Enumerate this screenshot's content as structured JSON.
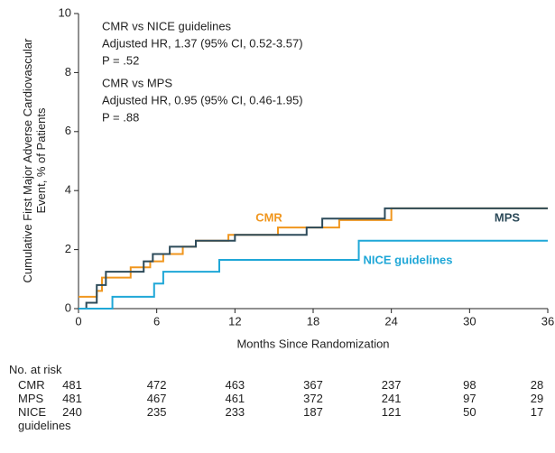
{
  "chart_data": {
    "type": "step",
    "y_label": "Cumulative First Major Adverse Cardiovascular Event, % of Patients",
    "x_label": "Months Since Randomization",
    "annotations": [
      "CMR vs NICE guidelines",
      "Adjusted HR, 1.37 (95% CI, 0.52-3.57)",
      "P = .52",
      "CMR vs MPS",
      "Adjusted HR, 0.95 (95% CI, 0.46-1.95)",
      "P = .88"
    ],
    "xlim": [
      0,
      36
    ],
    "xticks": [
      0,
      6,
      12,
      18,
      24,
      30,
      36
    ],
    "ylim": [
      0,
      10
    ],
    "yticks": [
      0,
      2,
      4,
      6,
      8,
      10
    ],
    "series": [
      {
        "name": "CMR",
        "color": "#f0961e",
        "x": [
          0,
          1.4,
          1.8,
          4.0,
          5.5,
          6.5,
          8.0,
          9.0,
          11.5,
          15.3,
          20.0,
          24.0,
          36
        ],
        "values": [
          0.4,
          0.6,
          1.05,
          1.4,
          1.6,
          1.85,
          2.1,
          2.3,
          2.5,
          2.75,
          3.0,
          3.4,
          3.4
        ]
      },
      {
        "name": "MPS",
        "color": "#2d4b5a",
        "x": [
          0,
          0.6,
          1.4,
          2.1,
          5.0,
          5.7,
          7.0,
          9.0,
          12.0,
          17.5,
          18.7,
          23.5,
          36
        ],
        "values": [
          0,
          0.2,
          0.8,
          1.25,
          1.6,
          1.85,
          2.1,
          2.3,
          2.5,
          2.75,
          3.05,
          3.4,
          3.4
        ]
      },
      {
        "name": "NICE guidelines",
        "color": "#1fa7d7",
        "x": [
          0,
          2.6,
          5.8,
          6.5,
          10.8,
          21.5,
          36
        ],
        "values": [
          0,
          0.4,
          0.85,
          1.25,
          1.65,
          2.3,
          2.3
        ]
      }
    ],
    "risk_table": {
      "title": "No. at risk",
      "rows": [
        {
          "label": "CMR",
          "values": [
            481,
            472,
            463,
            367,
            237,
            98,
            28
          ]
        },
        {
          "label": "MPS",
          "values": [
            481,
            467,
            461,
            372,
            241,
            97,
            29
          ]
        },
        {
          "label": "NICE guidelines",
          "values": [
            240,
            235,
            233,
            187,
            121,
            50,
            17
          ]
        }
      ]
    }
  }
}
